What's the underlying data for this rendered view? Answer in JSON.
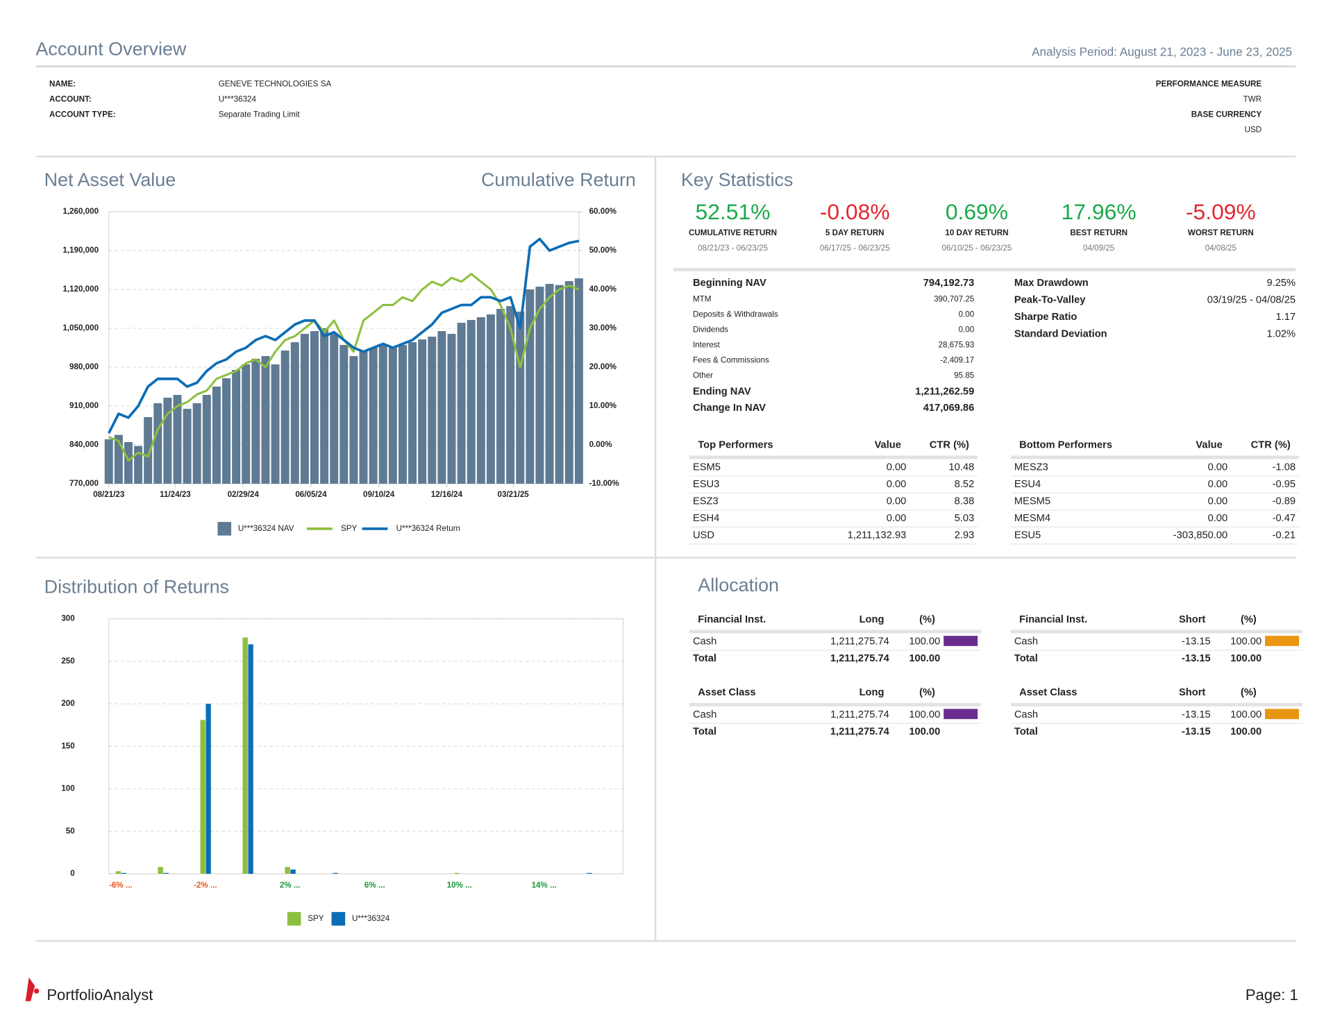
{
  "header": {
    "title": "Account Overview",
    "period": "Analysis Period: August 21, 2023 - June 23, 2025"
  },
  "account": {
    "fields": [
      [
        "NAME:",
        "GENEVE TECHNOLOGIES SA"
      ],
      [
        "ACCOUNT:",
        "U***36324"
      ],
      [
        "ACCOUNT TYPE:",
        "Separate Trading Limit"
      ]
    ],
    "right": [
      [
        "PERFORMANCE MEASURE",
        "TWR"
      ],
      [
        "BASE CURRENCY",
        "USD"
      ]
    ]
  },
  "chart_data": [
    {
      "type": "combo",
      "title": "Net Asset Value",
      "y2_title": "Cumulative Return",
      "x": [
        "2023-08-21",
        "2023-09-04",
        "2023-09-18",
        "2023-10-02",
        "2023-10-16",
        "2023-10-30",
        "2023-11-13",
        "2023-11-27",
        "2023-12-11",
        "2023-12-25",
        "2024-01-08",
        "2024-01-22",
        "2024-02-05",
        "2024-02-19",
        "2024-03-04",
        "2024-03-18",
        "2024-04-01",
        "2024-04-15",
        "2024-04-29",
        "2024-05-13",
        "2024-05-27",
        "2024-06-10",
        "2024-06-24",
        "2024-07-08",
        "2024-07-22",
        "2024-08-05",
        "2024-08-19",
        "2024-09-02",
        "2024-09-16",
        "2024-09-30",
        "2024-10-14",
        "2024-10-28",
        "2024-11-11",
        "2024-11-25",
        "2024-12-09",
        "2024-12-23",
        "2025-01-06",
        "2025-01-20",
        "2025-02-03",
        "2025-02-17",
        "2025-03-03",
        "2025-03-17",
        "2025-03-31",
        "2025-04-14",
        "2025-04-28",
        "2025-05-12",
        "2025-05-26",
        "2025-06-09",
        "2025-06-23"
      ],
      "xlim": [
        "2023-08-21",
        "2025-06-23"
      ],
      "xticks": [
        {
          "value": "2023-08-21",
          "label": "08/21/23"
        },
        {
          "value": "2023-11-24",
          "label": "11/24/23"
        },
        {
          "value": "2024-02-29",
          "label": "02/29/24"
        },
        {
          "value": "2024-06-05",
          "label": "06/05/24"
        },
        {
          "value": "2024-09-10",
          "label": "09/10/24"
        },
        {
          "value": "2024-12-16",
          "label": "12/16/24"
        },
        {
          "value": "2025-03-21",
          "label": "03/21/25"
        }
      ],
      "ylim": [
        770000,
        1260000
      ],
      "yticks": [
        {
          "value": 770000,
          "label": "770,000"
        },
        {
          "value": 840000,
          "label": "840,000"
        },
        {
          "value": 910000,
          "label": "910,000"
        },
        {
          "value": 980000,
          "label": "980,000"
        },
        {
          "value": 1050000,
          "label": "1,050,000"
        },
        {
          "value": 1120000,
          "label": "1,120,000"
        },
        {
          "value": 1190000,
          "label": "1,190,000"
        },
        {
          "value": 1260000,
          "label": "1,260,000"
        }
      ],
      "y2lim": [
        -10,
        60
      ],
      "y2ticks": [
        {
          "value": -10,
          "label": "-10.00%"
        },
        {
          "value": 0,
          "label": "0.00%"
        },
        {
          "value": 10,
          "label": "10.00%"
        },
        {
          "value": 20,
          "label": "20.00%"
        },
        {
          "value": 30,
          "label": "30.00%"
        },
        {
          "value": 40,
          "label": "40.00%"
        },
        {
          "value": 50,
          "label": "50.00%"
        },
        {
          "value": 60,
          "label": "60.00%"
        }
      ],
      "grid": true,
      "series": [
        {
          "name": "U***36324 NAV",
          "type": "bar",
          "color": "#5f7a93",
          "values": [
            850000,
            858000,
            845000,
            838000,
            890000,
            915000,
            925000,
            930000,
            905000,
            915000,
            930000,
            945000,
            960000,
            975000,
            985000,
            995000,
            1000000,
            985000,
            1010000,
            1025000,
            1040000,
            1045000,
            1050000,
            1040000,
            1020000,
            1000000,
            1010000,
            1015000,
            1020000,
            1015000,
            1020000,
            1025000,
            1030000,
            1035000,
            1045000,
            1040000,
            1060000,
            1065000,
            1070000,
            1075000,
            1085000,
            1090000,
            1080000,
            1120000,
            1125000,
            1130000,
            1128000,
            1135000,
            1140000
          ]
        },
        {
          "name": "SPY",
          "type": "line",
          "axis": "y2",
          "color": "#8dbf3f",
          "values": [
            2,
            1,
            -4,
            -2,
            -3,
            4,
            8,
            10,
            11,
            13,
            14,
            17,
            18,
            19,
            21,
            22,
            20,
            24,
            27,
            28,
            30,
            32,
            29,
            32,
            27,
            24,
            32,
            34,
            36,
            36,
            38,
            37,
            40,
            42,
            41,
            43,
            42,
            44,
            42,
            40,
            36,
            30,
            20,
            30,
            35,
            38,
            40,
            41,
            40
          ]
        },
        {
          "name": "U***36324 Return",
          "type": "line",
          "axis": "y2",
          "color": "#0b6db5",
          "values": [
            3,
            8,
            7,
            10,
            15,
            17,
            17,
            17,
            15,
            16,
            19,
            21,
            22,
            24,
            25,
            27,
            28,
            27,
            29,
            31,
            32,
            32,
            28,
            29,
            27,
            25,
            24,
            25,
            26,
            25,
            26,
            27,
            29,
            31,
            34,
            35,
            36,
            36,
            38,
            38,
            37,
            38,
            30,
            51,
            53,
            50,
            51,
            52,
            52.5
          ]
        }
      ]
    },
    {
      "type": "bar",
      "title": "Distribution of Returns",
      "categories": [
        "-6% ...",
        null,
        "-2% ...",
        null,
        "2% ...",
        null,
        "6% ...",
        null,
        "10% ...",
        null,
        "14% ...",
        null
      ],
      "category_colors": [
        "#e8541e",
        null,
        "#e8541e",
        null,
        "#1a9a3a",
        null,
        "#1a9a3a",
        null,
        "#1a9a3a",
        null,
        "#1a9a3a",
        null
      ],
      "ylim": [
        0,
        300
      ],
      "yticks": [
        0,
        50,
        100,
        150,
        200,
        250,
        300
      ],
      "grid": true,
      "series": [
        {
          "name": "SPY",
          "color": "#8dbf3f",
          "values": [
            3,
            8,
            181,
            278,
            8,
            0,
            0,
            0,
            1,
            0,
            0,
            0
          ]
        },
        {
          "name": "U***36324",
          "color": "#0b6db5",
          "values": [
            1,
            1,
            200,
            270,
            5,
            1,
            0,
            0,
            0,
            0,
            0,
            1
          ]
        }
      ]
    }
  ],
  "key_statistics": {
    "title": "Key Statistics",
    "stats": [
      {
        "value": "52.51%",
        "label": "CUMULATIVE RETURN",
        "period": "08/21/23 - 06/23/25",
        "color": "#1aaa4a"
      },
      {
        "value": "-0.08%",
        "label": "5 DAY RETURN",
        "period": "06/17/25 - 06/23/25",
        "color": "#e0282e"
      },
      {
        "value": "0.69%",
        "label": "10 DAY RETURN",
        "period": "06/10/25 - 06/23/25",
        "color": "#1aaa4a"
      },
      {
        "value": "17.96%",
        "label": "BEST RETURN",
        "period": "04/09/25",
        "color": "#1aaa4a"
      },
      {
        "value": "-5.09%",
        "label": "WORST RETURN",
        "period": "04/08/25",
        "color": "#e0282e"
      }
    ],
    "summary": [
      {
        "label": "Beginning NAV",
        "value": "794,192.73",
        "strong": true
      },
      {
        "label": "MTM",
        "value": "390,707.25",
        "strong": false
      },
      {
        "label": "Deposits & Withdrawals",
        "value": "0.00",
        "strong": false
      },
      {
        "label": "Dividends",
        "value": "0.00",
        "strong": false
      },
      {
        "label": "Interest",
        "value": "28,675.93",
        "strong": false
      },
      {
        "label": "Fees & Commissions",
        "value": "-2,409.17",
        "strong": false
      },
      {
        "label": "Other",
        "value": "95.85",
        "strong": false
      },
      {
        "label": "Ending NAV",
        "value": "1,211,262.59",
        "strong": true
      },
      {
        "label": "Change In NAV",
        "value": "417,069.86",
        "strong": true
      }
    ],
    "risk": [
      [
        "Max Drawdown",
        "9.25%"
      ],
      [
        "Peak-To-Valley",
        "03/19/25 - 04/08/25"
      ],
      [
        "Sharpe Ratio",
        "1.17"
      ],
      [
        "Standard Deviation",
        "1.02%"
      ]
    ]
  },
  "performers": {
    "top": {
      "columns": [
        "Top Performers",
        "Value",
        "CTR (%)"
      ],
      "rows": [
        [
          "ESM5",
          "0.00",
          "10.48"
        ],
        [
          "ESU3",
          "0.00",
          "8.52"
        ],
        [
          "ESZ3",
          "0.00",
          "8.38"
        ],
        [
          "ESH4",
          "0.00",
          "5.03"
        ],
        [
          "USD",
          "1,211,132.93",
          "2.93"
        ]
      ]
    },
    "bottom": {
      "columns": [
        "Bottom Performers",
        "Value",
        "CTR (%)"
      ],
      "rows": [
        [
          "MESZ3",
          "0.00",
          "-1.08"
        ],
        [
          "ESU4",
          "0.00",
          "-0.95"
        ],
        [
          "MESM5",
          "0.00",
          "-0.89"
        ],
        [
          "MESM4",
          "0.00",
          "-0.47"
        ],
        [
          "ESU5",
          "-303,850.00",
          "-0.21"
        ]
      ]
    }
  },
  "allocation": {
    "title": "Allocation",
    "tables": [
      {
        "columns": [
          "Financial Inst.",
          "Long",
          "(%)"
        ],
        "rows": [
          [
            "Cash",
            "1,211,275.74",
            "100.00"
          ]
        ],
        "total": [
          "Total",
          "1,211,275.74",
          "100.00"
        ],
        "color": "#6a2d8f"
      },
      {
        "columns": [
          "Financial Inst.",
          "Short",
          "(%)"
        ],
        "rows": [
          [
            "Cash",
            "-13.15",
            "100.00"
          ]
        ],
        "total": [
          "Total",
          "-13.15",
          "100.00"
        ],
        "color": "#e8950f"
      },
      {
        "columns": [
          "Asset Class",
          "Long",
          "(%)"
        ],
        "rows": [
          [
            "Cash",
            "1,211,275.74",
            "100.00"
          ]
        ],
        "total": [
          "Total",
          "1,211,275.74",
          "100.00"
        ],
        "color": "#6a2d8f"
      },
      {
        "columns": [
          "Asset Class",
          "Short",
          "(%)"
        ],
        "rows": [
          [
            "Cash",
            "-13.15",
            "100.00"
          ]
        ],
        "total": [
          "Total",
          "-13.15",
          "100.00"
        ],
        "color": "#e8950f"
      }
    ]
  },
  "footer": {
    "brand": "PortfolioAnalyst",
    "page": "Page: 1"
  }
}
